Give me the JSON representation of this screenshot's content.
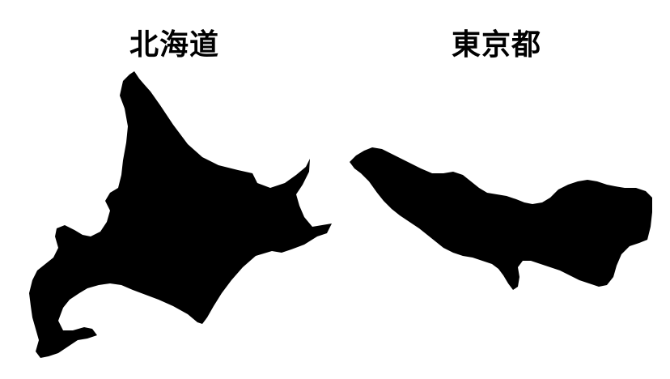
{
  "regions": [
    {
      "id": "hokkaido",
      "label": "北海道",
      "fill": "#000000"
    },
    {
      "id": "tokyo",
      "label": "東京都",
      "fill": "#000000"
    }
  ]
}
